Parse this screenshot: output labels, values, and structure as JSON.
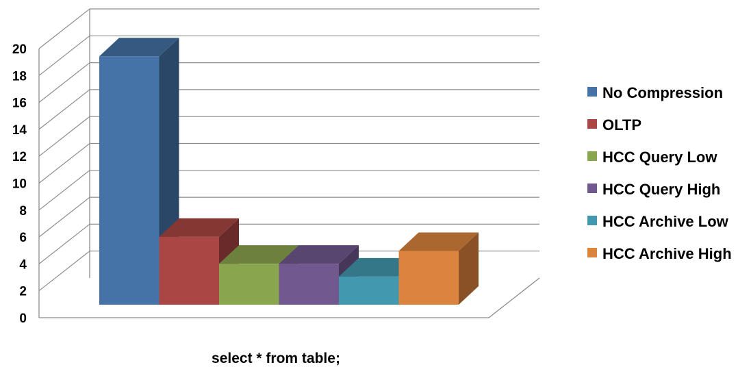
{
  "chart_data": {
    "type": "bar",
    "style": "3d-column",
    "categories": [
      "select * from table;"
    ],
    "series": [
      {
        "name": "No Compression",
        "values": [
          19.4
        ],
        "color": "#4572A7"
      },
      {
        "name": "OLTP",
        "values": [
          5.3
        ],
        "color": "#AA4643"
      },
      {
        "name": "HCC Query Low",
        "values": [
          3.2
        ],
        "color": "#89A54E"
      },
      {
        "name": "HCC Query High",
        "values": [
          3.2
        ],
        "color": "#71588F"
      },
      {
        "name": "HCC Archive Low",
        "values": [
          2.2
        ],
        "color": "#4198AF"
      },
      {
        "name": "HCC Archive High",
        "values": [
          4.2
        ],
        "color": "#DB843D"
      }
    ],
    "title": "",
    "xlabel": "select * from table;",
    "ylabel": "",
    "ylim": [
      0,
      20
    ],
    "yticks": [
      "0",
      "2",
      "4",
      "6",
      "8",
      "10",
      "12",
      "14",
      "16",
      "18",
      "20"
    ],
    "grid": true,
    "legend": "right"
  }
}
